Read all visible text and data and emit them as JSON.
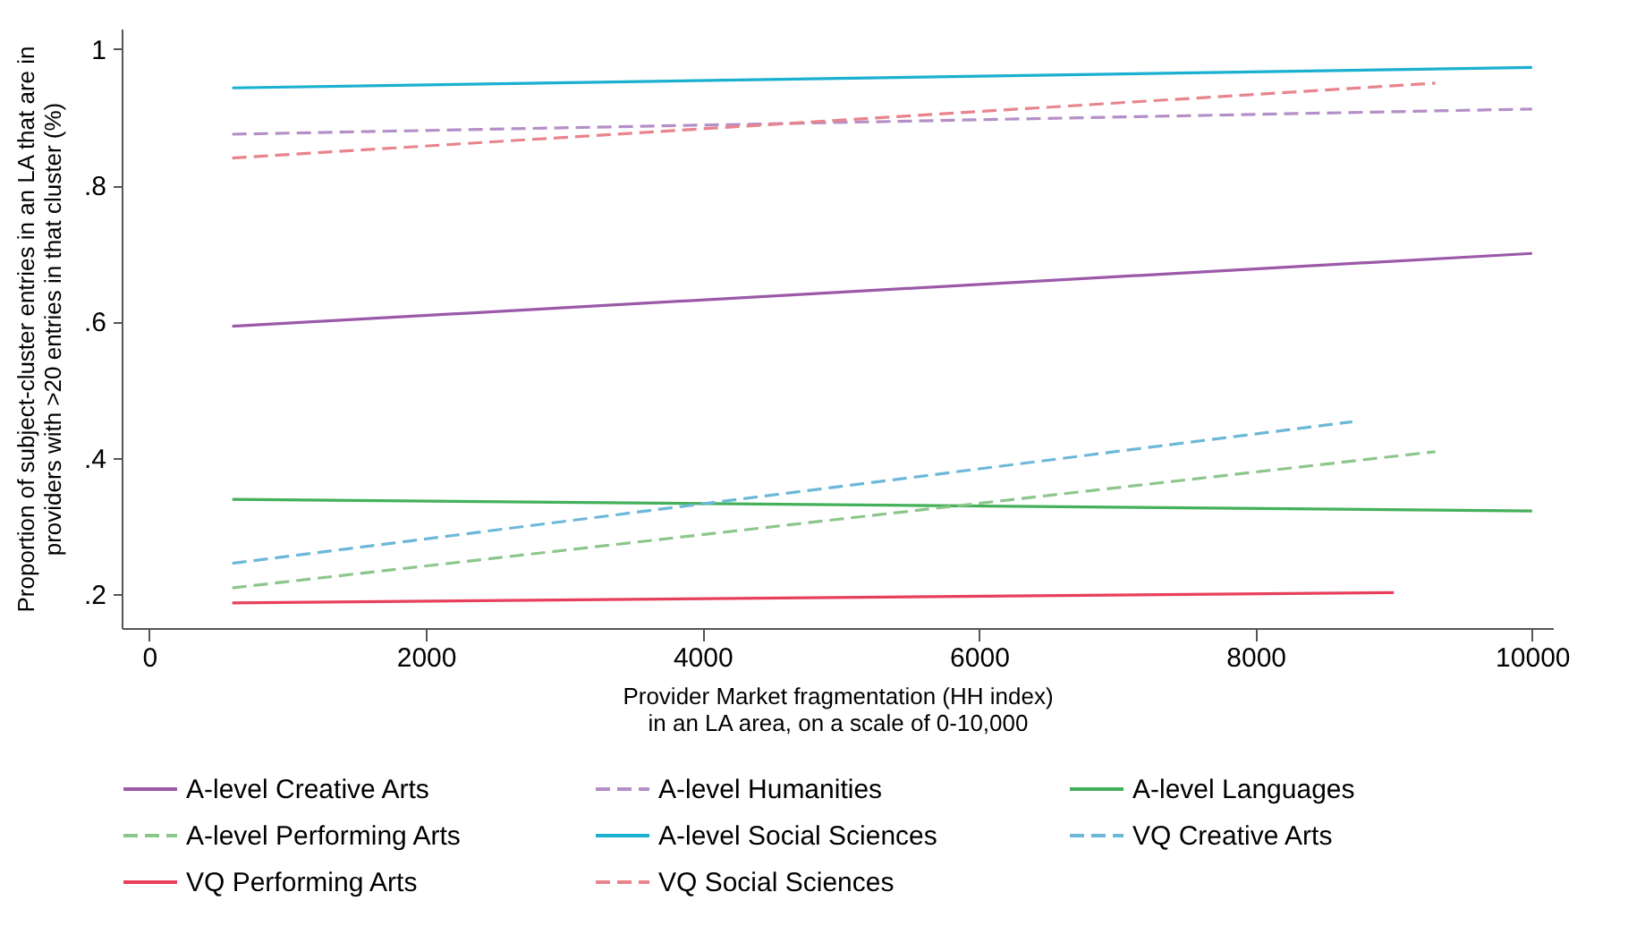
{
  "chart_data": {
    "type": "line",
    "xlabel": "Provider Market fragmentation (HH index)\nin an LA area, on a scale of 0-10,000",
    "ylabel": "Proportion of subject-cluster entries in an LA that are in\nproviders with >20 entries in that cluster (%)",
    "xlim": [
      -200,
      10150
    ],
    "xticks": [
      0,
      2000,
      4000,
      6000,
      8000,
      10000
    ],
    "ylim": [
      0.15,
      1.03
    ],
    "yticks": [
      {
        "value": 0.2,
        "label": ".2"
      },
      {
        "value": 0.4,
        "label": ".4"
      },
      {
        "value": 0.6,
        "label": ".6"
      },
      {
        "value": 0.8,
        "label": ".8"
      },
      {
        "value": 1,
        "label": "1"
      }
    ],
    "grid": false,
    "legend": "bottom",
    "marker": "none",
    "series": [
      {
        "name": "A-level Creative Arts",
        "color": "#9b59a8",
        "line_style": "solid",
        "x": [
          600,
          10000
        ],
        "values": [
          0.593,
          0.7
        ]
      },
      {
        "name": "A-level Humanities",
        "color": "#b48fc7",
        "line_style": "dashed",
        "x": [
          600,
          10000
        ],
        "values": [
          0.875,
          0.912
        ]
      },
      {
        "name": "A-level Languages",
        "color": "#45b05a",
        "line_style": "solid",
        "x": [
          600,
          10000
        ],
        "values": [
          0.339,
          0.322
        ]
      },
      {
        "name": "A-level Performing Arts",
        "color": "#8cc68a",
        "line_style": "dashed",
        "x": [
          600,
          9300
        ],
        "values": [
          0.209,
          0.409
        ]
      },
      {
        "name": "A-level Social Sciences",
        "color": "#1ab0d0",
        "line_style": "solid",
        "x": [
          600,
          10000
        ],
        "values": [
          0.943,
          0.973
        ]
      },
      {
        "name": "VQ Creative Arts",
        "color": "#6cb8d8",
        "line_style": "dashed",
        "x": [
          600,
          8700
        ],
        "values": [
          0.245,
          0.453
        ]
      },
      {
        "name": "VQ Performing Arts",
        "color": "#e8405c",
        "line_style": "solid",
        "x": [
          600,
          9000
        ],
        "values": [
          0.187,
          0.202
        ]
      },
      {
        "name": "VQ Social Sciences",
        "color": "#e8848c",
        "line_style": "dashed",
        "x": [
          600,
          9300
        ],
        "values": [
          0.84,
          0.95
        ]
      }
    ]
  }
}
